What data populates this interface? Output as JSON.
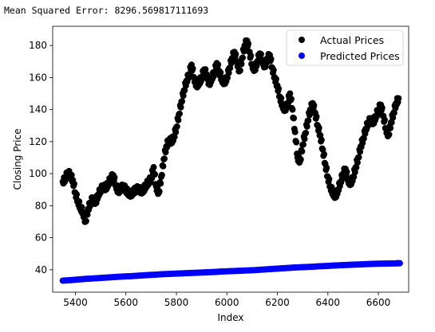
{
  "console": {
    "mse_line": "Mean Squared Error: 8296.569817111693"
  },
  "chart_data": {
    "type": "scatter",
    "title": "",
    "xlabel": "Index",
    "ylabel": "Closing Price",
    "xlim": [
      5310,
      6720
    ],
    "ylim": [
      26,
      192
    ],
    "xticks": [
      5400,
      5600,
      5800,
      6000,
      6200,
      6400,
      6600
    ],
    "yticks": [
      40,
      60,
      80,
      100,
      120,
      140,
      160,
      180
    ],
    "grid": false,
    "legend_position": "top-right",
    "series": [
      {
        "name": "Actual Prices",
        "color": "#000000",
        "points": [
          [
            5350,
            95
          ],
          [
            5360,
            97
          ],
          [
            5370,
            101
          ],
          [
            5380,
            99
          ],
          [
            5390,
            96
          ],
          [
            5400,
            88
          ],
          [
            5410,
            83
          ],
          [
            5420,
            79
          ],
          [
            5430,
            76
          ],
          [
            5440,
            70
          ],
          [
            5450,
            78
          ],
          [
            5460,
            82
          ],
          [
            5470,
            85
          ],
          [
            5480,
            82
          ],
          [
            5490,
            87
          ],
          [
            5500,
            90
          ],
          [
            5510,
            92
          ],
          [
            5520,
            91
          ],
          [
            5530,
            94
          ],
          [
            5540,
            97
          ],
          [
            5550,
            99
          ],
          [
            5560,
            93
          ],
          [
            5570,
            89
          ],
          [
            5580,
            91
          ],
          [
            5590,
            92
          ],
          [
            5600,
            90
          ],
          [
            5610,
            88
          ],
          [
            5620,
            87
          ],
          [
            5630,
            89
          ],
          [
            5640,
            90
          ],
          [
            5650,
            91
          ],
          [
            5660,
            89
          ],
          [
            5670,
            90
          ],
          [
            5680,
            93
          ],
          [
            5690,
            95
          ],
          [
            5700,
            97
          ],
          [
            5710,
            104
          ],
          [
            5720,
            92
          ],
          [
            5730,
            88
          ],
          [
            5740,
            98
          ],
          [
            5750,
            109
          ],
          [
            5760,
            117
          ],
          [
            5770,
            121
          ],
          [
            5780,
            120
          ],
          [
            5790,
            123
          ],
          [
            5800,
            129
          ],
          [
            5810,
            137
          ],
          [
            5820,
            145
          ],
          [
            5830,
            152
          ],
          [
            5840,
            158
          ],
          [
            5850,
            162
          ],
          [
            5860,
            168
          ],
          [
            5870,
            160
          ],
          [
            5880,
            155
          ],
          [
            5890,
            157
          ],
          [
            5900,
            160
          ],
          [
            5910,
            165
          ],
          [
            5920,
            162
          ],
          [
            5930,
            156
          ],
          [
            5940,
            160
          ],
          [
            5950,
            163
          ],
          [
            5960,
            169
          ],
          [
            5970,
            164
          ],
          [
            5980,
            159
          ],
          [
            5990,
            157
          ],
          [
            6000,
            160
          ],
          [
            6010,
            166
          ],
          [
            6020,
            172
          ],
          [
            6030,
            176
          ],
          [
            6040,
            170
          ],
          [
            6050,
            164
          ],
          [
            6060,
            172
          ],
          [
            6070,
            180
          ],
          [
            6080,
            183
          ],
          [
            6090,
            176
          ],
          [
            6100,
            168
          ],
          [
            6110,
            165
          ],
          [
            6120,
            170
          ],
          [
            6130,
            175
          ],
          [
            6140,
            171
          ],
          [
            6150,
            167
          ],
          [
            6160,
            172
          ],
          [
            6170,
            174
          ],
          [
            6180,
            166
          ],
          [
            6190,
            160
          ],
          [
            6200,
            155
          ],
          [
            6210,
            148
          ],
          [
            6220,
            143
          ],
          [
            6230,
            140
          ],
          [
            6240,
            144
          ],
          [
            6250,
            150
          ],
          [
            6260,
            140
          ],
          [
            6270,
            126
          ],
          [
            6280,
            110
          ],
          [
            6290,
            108
          ],
          [
            6300,
            118
          ],
          [
            6310,
            125
          ],
          [
            6320,
            133
          ],
          [
            6330,
            140
          ],
          [
            6340,
            144
          ],
          [
            6350,
            138
          ],
          [
            6360,
            130
          ],
          [
            6370,
            124
          ],
          [
            6380,
            115
          ],
          [
            6390,
            106
          ],
          [
            6400,
            98
          ],
          [
            6410,
            92
          ],
          [
            6420,
            88
          ],
          [
            6430,
            86
          ],
          [
            6440,
            90
          ],
          [
            6450,
            95
          ],
          [
            6460,
            100
          ],
          [
            6470,
            103
          ],
          [
            6480,
            96
          ],
          [
            6490,
            94
          ],
          [
            6500,
            98
          ],
          [
            6510,
            104
          ],
          [
            6520,
            110
          ],
          [
            6530,
            117
          ],
          [
            6540,
            122
          ],
          [
            6550,
            128
          ],
          [
            6560,
            132
          ],
          [
            6570,
            134
          ],
          [
            6580,
            132
          ],
          [
            6590,
            136
          ],
          [
            6600,
            140
          ],
          [
            6610,
            143
          ],
          [
            6620,
            136
          ],
          [
            6630,
            128
          ],
          [
            6640,
            124
          ],
          [
            6650,
            132
          ],
          [
            6660,
            138
          ],
          [
            6670,
            144
          ],
          [
            6680,
            147
          ]
        ]
      },
      {
        "name": "Predicted Prices",
        "color": "#0000ff",
        "points": [
          [
            5350,
            33.2
          ],
          [
            5380,
            33.5
          ],
          [
            5410,
            33.9
          ],
          [
            5440,
            34.3
          ],
          [
            5470,
            34.6
          ],
          [
            5500,
            34.9
          ],
          [
            5530,
            35.2
          ],
          [
            5560,
            35.5
          ],
          [
            5590,
            35.8
          ],
          [
            5620,
            36.0
          ],
          [
            5650,
            36.3
          ],
          [
            5680,
            36.6
          ],
          [
            5710,
            36.9
          ],
          [
            5740,
            37.2
          ],
          [
            5770,
            37.4
          ],
          [
            5800,
            37.6
          ],
          [
            5830,
            37.8
          ],
          [
            5860,
            38.0
          ],
          [
            5890,
            38.2
          ],
          [
            5920,
            38.4
          ],
          [
            5950,
            38.6
          ],
          [
            5980,
            38.9
          ],
          [
            6010,
            39.1
          ],
          [
            6040,
            39.3
          ],
          [
            6070,
            39.5
          ],
          [
            6100,
            39.7
          ],
          [
            6130,
            40.0
          ],
          [
            6160,
            40.3
          ],
          [
            6190,
            40.6
          ],
          [
            6220,
            40.9
          ],
          [
            6250,
            41.2
          ],
          [
            6280,
            41.5
          ],
          [
            6310,
            41.7
          ],
          [
            6340,
            41.9
          ],
          [
            6370,
            42.2
          ],
          [
            6400,
            42.4
          ],
          [
            6430,
            42.7
          ],
          [
            6460,
            42.9
          ],
          [
            6490,
            43.1
          ],
          [
            6520,
            43.3
          ],
          [
            6550,
            43.5
          ],
          [
            6580,
            43.7
          ],
          [
            6610,
            43.8
          ],
          [
            6640,
            43.9
          ],
          [
            6670,
            44.0
          ],
          [
            6685,
            44.1
          ]
        ]
      }
    ]
  }
}
